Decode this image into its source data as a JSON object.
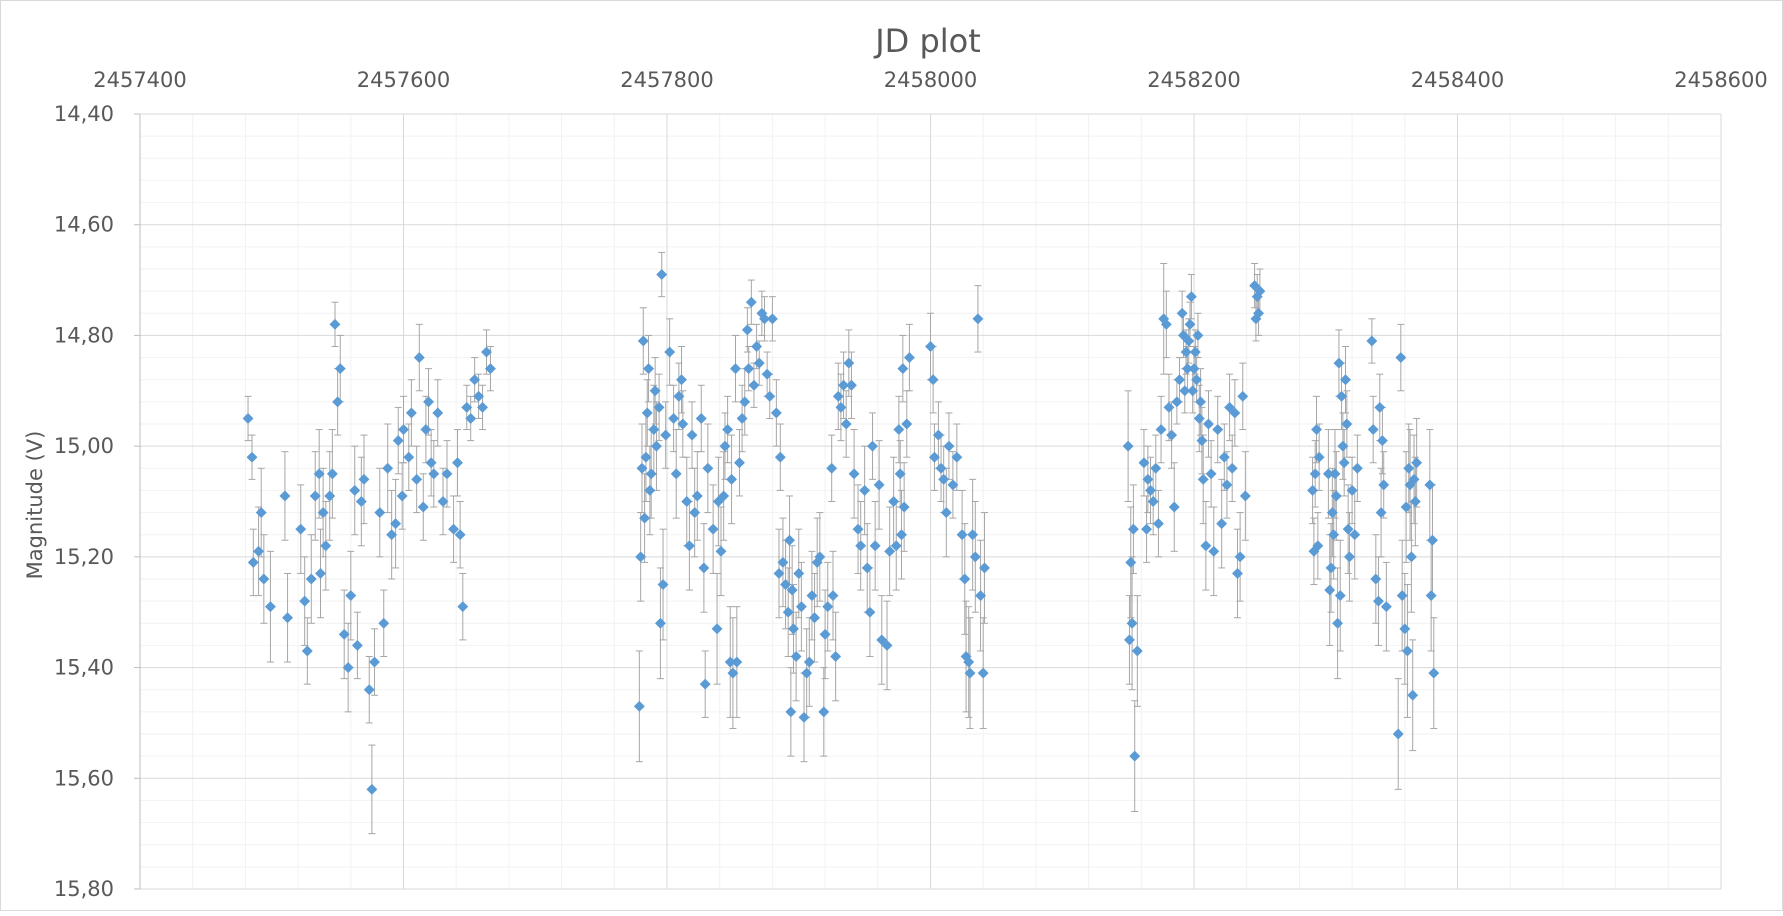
{
  "chart_data": {
    "type": "scatter",
    "title": "JD plot",
    "xlabel": "",
    "ylabel": "Magnitude (V)",
    "xlim": [
      2457400,
      2458600
    ],
    "ylim": [
      14.4,
      15.8
    ],
    "y_reversed": true,
    "x_axis_position": "top",
    "grid": true,
    "minor_grid": true,
    "x_ticks": [
      "2457400",
      "2457600",
      "2457800",
      "2458000",
      "2458200",
      "2458400",
      "2458600"
    ],
    "y_ticks": [
      "14,40",
      "14,60",
      "14,80",
      "15,00",
      "15,20",
      "15,40",
      "15,60",
      "15,80"
    ],
    "marker": "diamond",
    "color": "#5B9BD5",
    "errorbar_color": "#A6A6A6",
    "series": [
      {
        "x": [
          2457482,
          2457485,
          2457486,
          2457490,
          2457492,
          2457494,
          2457499,
          2457510,
          2457512,
          2457522,
          2457525,
          2457527,
          2457530,
          2457533,
          2457536,
          2457537,
          2457539,
          2457541,
          2457544,
          2457546,
          2457548,
          2457550,
          2457552,
          2457555,
          2457558,
          2457560,
          2457563,
          2457565,
          2457568,
          2457570,
          2457574,
          2457576,
          2457578,
          2457582,
          2457585,
          2457588,
          2457591,
          2457594,
          2457596,
          2457599,
          2457600,
          2457604,
          2457606,
          2457610,
          2457612,
          2457615,
          2457617,
          2457619,
          2457621,
          2457623,
          2457626,
          2457630,
          2457633,
          2457638,
          2457641,
          2457643,
          2457645,
          2457648,
          2457651,
          2457654,
          2457657,
          2457660,
          2457663,
          2457666
        ],
        "y": [
          14.95,
          15.02,
          15.21,
          15.19,
          15.12,
          15.24,
          15.29,
          15.09,
          15.31,
          15.15,
          15.28,
          15.37,
          15.24,
          15.09,
          15.05,
          15.23,
          15.12,
          15.18,
          15.09,
          15.05,
          14.78,
          14.92,
          14.86,
          15.34,
          15.4,
          15.27,
          15.08,
          15.36,
          15.1,
          15.06,
          15.44,
          15.62,
          15.39,
          15.12,
          15.32,
          15.04,
          15.16,
          15.14,
          14.99,
          15.09,
          14.97,
          15.02,
          14.94,
          15.06,
          14.84,
          15.11,
          14.97,
          14.92,
          15.03,
          15.05,
          14.94,
          15.1,
          15.05,
          15.15,
          15.03,
          15.16,
          15.29,
          14.93,
          14.95,
          14.88,
          14.91,
          14.93,
          14.83,
          14.86
        ],
        "err": [
          0.04,
          0.04,
          0.06,
          0.08,
          0.08,
          0.08,
          0.1,
          0.08,
          0.08,
          0.08,
          0.08,
          0.06,
          0.08,
          0.08,
          0.08,
          0.08,
          0.08,
          0.08,
          0.08,
          0.08,
          0.04,
          0.06,
          0.06,
          0.08,
          0.08,
          0.08,
          0.08,
          0.06,
          0.08,
          0.08,
          0.06,
          0.08,
          0.06,
          0.08,
          0.06,
          0.08,
          0.08,
          0.08,
          0.06,
          0.06,
          0.06,
          0.06,
          0.06,
          0.06,
          0.06,
          0.06,
          0.06,
          0.06,
          0.06,
          0.06,
          0.06,
          0.06,
          0.06,
          0.06,
          0.06,
          0.06,
          0.06,
          0.04,
          0.04,
          0.04,
          0.04,
          0.04,
          0.04,
          0.04
        ]
      },
      {
        "x": [
          2457779,
          2457780,
          2457781,
          2457782,
          2457783,
          2457784,
          2457785,
          2457786,
          2457787,
          2457788,
          2457790,
          2457791,
          2457792,
          2457794,
          2457795,
          2457796,
          2457797,
          2457799,
          2457802,
          2457805,
          2457807,
          2457809,
          2457811,
          2457812,
          2457815,
          2457817,
          2457819,
          2457821,
          2457823,
          2457826,
          2457828,
          2457829,
          2457831,
          2457835,
          2457838,
          2457839,
          2457841,
          2457843,
          2457844,
          2457846,
          2457848,
          2457849,
          2457850,
          2457852,
          2457853,
          2457855,
          2457857,
          2457859,
          2457861,
          2457862,
          2457864,
          2457866,
          2457868,
          2457870,
          2457872,
          2457874,
          2457876,
          2457878,
          2457880,
          2457883,
          2457885,
          2457886,
          2457888,
          2457890,
          2457892,
          2457893,
          2457894,
          2457895,
          2457896,
          2457898,
          2457900,
          2457902,
          2457904,
          2457906,
          2457908,
          2457910,
          2457912,
          2457914,
          2457916,
          2457919,
          2457920,
          2457922,
          2457925,
          2457926,
          2457928,
          2457930,
          2457932,
          2457934,
          2457936,
          2457938,
          2457940,
          2457942,
          2457945,
          2457947,
          2457950,
          2457952,
          2457954,
          2457956,
          2457958,
          2457961,
          2457963,
          2457967,
          2457969,
          2457972,
          2457974,
          2457976,
          2457977,
          2457978,
          2457979,
          2457980,
          2457982,
          2457984,
          2458000,
          2458002,
          2458003,
          2458006,
          2458008,
          2458010,
          2458012,
          2458014,
          2458017,
          2458020,
          2458024,
          2458026,
          2458027,
          2458029,
          2458030,
          2458032,
          2458034,
          2458036,
          2458038,
          2458040,
          2458041
        ],
        "y": [
          15.47,
          15.2,
          15.04,
          14.81,
          15.13,
          15.02,
          14.94,
          14.86,
          15.08,
          15.05,
          14.97,
          14.9,
          15.0,
          14.93,
          15.32,
          14.69,
          15.25,
          14.98,
          14.83,
          14.95,
          15.05,
          14.91,
          14.88,
          14.96,
          15.1,
          15.18,
          14.98,
          15.12,
          15.09,
          14.95,
          15.22,
          15.43,
          15.04,
          15.15,
          15.33,
          15.1,
          15.19,
          15.09,
          15.0,
          14.97,
          15.39,
          15.06,
          15.41,
          14.86,
          15.39,
          15.03,
          14.95,
          14.92,
          14.79,
          14.86,
          14.74,
          14.89,
          14.82,
          14.85,
          14.76,
          14.77,
          14.87,
          14.91,
          14.77,
          14.94,
          15.23,
          15.02,
          15.21,
          15.25,
          15.3,
          15.17,
          15.48,
          15.26,
          15.33,
          15.38,
          15.23,
          15.29,
          15.49,
          15.41,
          15.39,
          15.27,
          15.31,
          15.21,
          15.2,
          15.48,
          15.34,
          15.29,
          15.04,
          15.27,
          15.38,
          14.91,
          14.93,
          14.89,
          14.96,
          14.85,
          14.89,
          15.05,
          15.15,
          15.18,
          15.08,
          15.22,
          15.3,
          15.0,
          15.18,
          15.07,
          15.35,
          15.36,
          15.19,
          15.1,
          15.18,
          14.97,
          15.05,
          15.16,
          14.86,
          15.11,
          14.96,
          14.84,
          14.82,
          14.88,
          15.02,
          14.98,
          15.04,
          15.06,
          15.12,
          15.0,
          15.07,
          15.02,
          15.16,
          15.24,
          15.38,
          15.39,
          15.41,
          15.16,
          15.2,
          14.77,
          15.27,
          15.41,
          15.22
        ],
        "err": [
          0.1,
          0.08,
          0.08,
          0.06,
          0.08,
          0.08,
          0.06,
          0.06,
          0.08,
          0.08,
          0.08,
          0.06,
          0.08,
          0.06,
          0.1,
          0.04,
          0.1,
          0.06,
          0.06,
          0.06,
          0.08,
          0.06,
          0.06,
          0.06,
          0.08,
          0.08,
          0.06,
          0.08,
          0.08,
          0.06,
          0.08,
          0.06,
          0.08,
          0.08,
          0.1,
          0.08,
          0.08,
          0.08,
          0.06,
          0.06,
          0.1,
          0.08,
          0.1,
          0.06,
          0.1,
          0.06,
          0.06,
          0.06,
          0.04,
          0.04,
          0.04,
          0.04,
          0.04,
          0.04,
          0.04,
          0.04,
          0.04,
          0.04,
          0.04,
          0.06,
          0.08,
          0.06,
          0.08,
          0.08,
          0.08,
          0.08,
          0.08,
          0.08,
          0.08,
          0.08,
          0.08,
          0.08,
          0.08,
          0.08,
          0.08,
          0.08,
          0.08,
          0.08,
          0.08,
          0.08,
          0.08,
          0.08,
          0.06,
          0.08,
          0.08,
          0.06,
          0.06,
          0.06,
          0.06,
          0.06,
          0.06,
          0.08,
          0.08,
          0.08,
          0.08,
          0.08,
          0.08,
          0.06,
          0.08,
          0.08,
          0.08,
          0.08,
          0.08,
          0.08,
          0.08,
          0.06,
          0.06,
          0.08,
          0.06,
          0.08,
          0.06,
          0.06,
          0.06,
          0.06,
          0.06,
          0.06,
          0.06,
          0.06,
          0.08,
          0.06,
          0.06,
          0.06,
          0.08,
          0.1,
          0.1,
          0.1,
          0.1,
          0.1,
          0.1,
          0.06,
          0.1,
          0.1,
          0.1
        ]
      },
      {
        "x": [
          2458150,
          2458151,
          2458152,
          2458153,
          2458154,
          2458155,
          2458157,
          2458162,
          2458164,
          2458165,
          2458167,
          2458169,
          2458171,
          2458173,
          2458175,
          2458177,
          2458179,
          2458181,
          2458183,
          2458185,
          2458187,
          2458189,
          2458191,
          2458192,
          2458193,
          2458194,
          2458195,
          2458196,
          2458197,
          2458198,
          2458199,
          2458200,
          2458201,
          2458202,
          2458203,
          2458204,
          2458205,
          2458206,
          2458207,
          2458209,
          2458211,
          2458213,
          2458215,
          2458218,
          2458221,
          2458223,
          2458225,
          2458227,
          2458229,
          2458231,
          2458233,
          2458235,
          2458237,
          2458239,
          2458246,
          2458247,
          2458248,
          2458249,
          2458250
        ],
        "y": [
          15.0,
          15.35,
          15.21,
          15.32,
          15.15,
          15.56,
          15.37,
          15.03,
          15.15,
          15.06,
          15.08,
          15.1,
          15.04,
          15.14,
          14.97,
          14.77,
          14.78,
          14.93,
          14.98,
          15.11,
          14.92,
          14.88,
          14.76,
          14.8,
          14.9,
          14.83,
          14.86,
          14.81,
          14.78,
          14.73,
          14.9,
          14.86,
          14.83,
          14.88,
          14.8,
          14.95,
          14.92,
          14.99,
          15.06,
          15.18,
          14.96,
          15.05,
          15.19,
          14.97,
          15.14,
          15.02,
          15.07,
          14.93,
          15.04,
          14.94,
          15.23,
          15.2,
          14.91,
          15.09,
          14.71,
          14.77,
          14.73,
          14.76,
          14.72
        ],
        "err": [
          0.1,
          0.08,
          0.1,
          0.12,
          0.08,
          0.1,
          0.1,
          0.06,
          0.06,
          0.06,
          0.06,
          0.06,
          0.06,
          0.06,
          0.06,
          0.1,
          0.06,
          0.06,
          0.06,
          0.08,
          0.04,
          0.04,
          0.04,
          0.04,
          0.04,
          0.04,
          0.04,
          0.04,
          0.04,
          0.04,
          0.04,
          0.04,
          0.04,
          0.04,
          0.04,
          0.06,
          0.06,
          0.06,
          0.08,
          0.08,
          0.06,
          0.06,
          0.08,
          0.06,
          0.08,
          0.06,
          0.06,
          0.06,
          0.06,
          0.06,
          0.08,
          0.08,
          0.06,
          0.08,
          0.04,
          0.04,
          0.04,
          0.04,
          0.04
        ]
      },
      {
        "x": [
          2458290,
          2458291,
          2458292,
          2458293,
          2458294,
          2458295,
          2458302,
          2458303,
          2458304,
          2458305,
          2458306,
          2458307,
          2458308,
          2458309,
          2458310,
          2458311,
          2458312,
          2458313,
          2458314,
          2458315,
          2458316,
          2458317,
          2458318,
          2458320,
          2458322,
          2458324,
          2458335,
          2458336,
          2458338,
          2458340,
          2458341,
          2458342,
          2458343,
          2458344,
          2458346,
          2458355,
          2458357,
          2458358,
          2458360,
          2458361,
          2458362,
          2458363,
          2458364,
          2458365,
          2458366,
          2458367,
          2458368,
          2458369,
          2458379,
          2458380,
          2458381,
          2458382
        ],
        "y": [
          15.08,
          15.19,
          15.05,
          14.97,
          15.18,
          15.02,
          15.05,
          15.26,
          15.22,
          15.12,
          15.16,
          15.05,
          15.09,
          15.32,
          14.85,
          15.27,
          14.91,
          15.0,
          15.03,
          14.88,
          14.96,
          15.15,
          15.2,
          15.08,
          15.16,
          15.04,
          14.81,
          14.97,
          15.24,
          15.28,
          14.93,
          15.12,
          14.99,
          15.07,
          15.29,
          15.52,
          14.84,
          15.27,
          15.33,
          15.11,
          15.37,
          15.04,
          15.07,
          15.2,
          15.45,
          15.06,
          15.1,
          15.03,
          15.07,
          15.27,
          15.17,
          15.41
        ],
        "err": [
          0.06,
          0.06,
          0.06,
          0.06,
          0.06,
          0.06,
          0.08,
          0.1,
          0.08,
          0.08,
          0.08,
          0.08,
          0.08,
          0.1,
          0.06,
          0.1,
          0.06,
          0.06,
          0.06,
          0.06,
          0.06,
          0.08,
          0.08,
          0.06,
          0.08,
          0.06,
          0.04,
          0.06,
          0.08,
          0.08,
          0.06,
          0.08,
          0.06,
          0.06,
          0.08,
          0.1,
          0.06,
          0.1,
          0.1,
          0.1,
          0.12,
          0.08,
          0.1,
          0.1,
          0.1,
          0.08,
          0.08,
          0.08,
          0.1,
          0.1,
          0.1,
          0.1
        ]
      }
    ]
  }
}
